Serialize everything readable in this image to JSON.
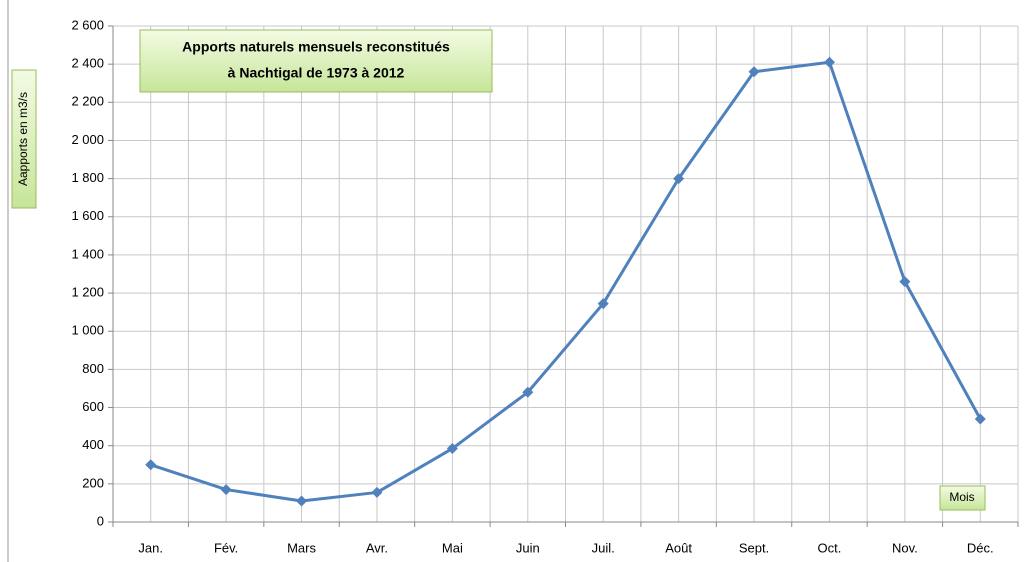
{
  "chart_data": {
    "type": "line",
    "title": [
      "Apports naturels mensuels reconstitués",
      "à Nachtigal de 1973 à 2012"
    ],
    "y_label": "Aapports en m3/s",
    "x_label": "Mois",
    "categories": [
      "Jan.",
      "Fév.",
      "Mars",
      "Avr.",
      "Mai",
      "Juin",
      "Juil.",
      "Août",
      "Sept.",
      "Oct.",
      "Nov.",
      "Déc."
    ],
    "series": [
      {
        "name": "Apports",
        "color": "#4f81bd",
        "values": [
          300,
          170,
          110,
          155,
          385,
          680,
          1145,
          1800,
          2360,
          2410,
          1260,
          540
        ]
      }
    ],
    "ylim": [
      0,
      2600
    ],
    "yticks": [
      0,
      200,
      400,
      600,
      800,
      {
        "value": 1000,
        "label": "1 000"
      },
      {
        "value": 1200,
        "label": "1 200"
      },
      {
        "value": 1400,
        "label": "1 400"
      },
      {
        "value": 1600,
        "label": "1 600"
      },
      {
        "value": 1800,
        "label": "1 800"
      },
      {
        "value": 2000,
        "label": "2 000"
      },
      {
        "value": 2200,
        "label": "2 200"
      },
      {
        "value": 2400,
        "label": "2 400"
      },
      {
        "value": 2600,
        "label": "2 600"
      }
    ],
    "grid": true
  }
}
